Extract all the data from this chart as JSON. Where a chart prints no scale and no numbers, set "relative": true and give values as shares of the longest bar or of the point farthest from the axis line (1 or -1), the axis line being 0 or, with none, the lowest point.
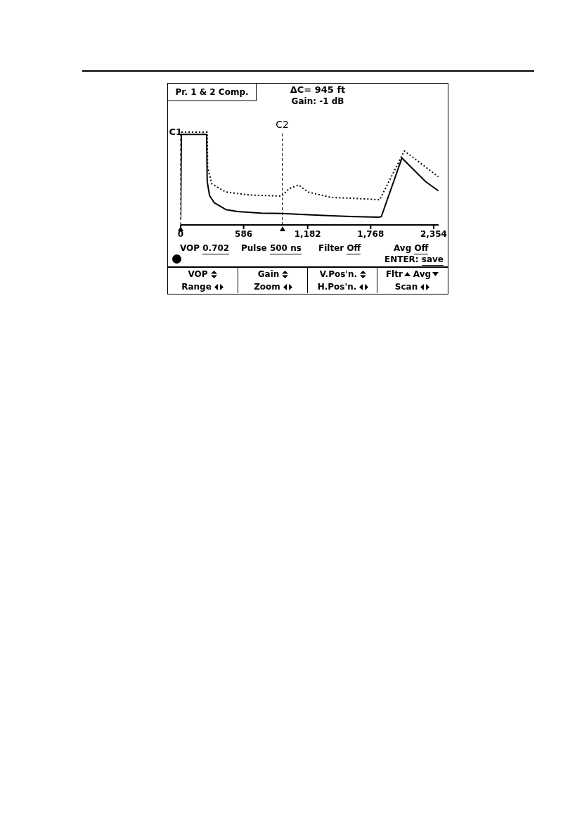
{
  "chart_data": {
    "type": "line",
    "title": "Pr. 1 & 2 Comp.",
    "relative": true,
    "xlim": [
      0,
      2400
    ],
    "xticks": [
      0,
      586,
      {
        "value": 1182,
        "label": "1,182"
      },
      {
        "value": 1768,
        "label": "1,768"
      },
      {
        "value": 2354,
        "label": "2,354"
      }
    ],
    "series": [
      {
        "color": "#000000",
        "line_style": "solid",
        "x": [
          0,
          6.5,
          242,
          247,
          269,
          312,
          421,
          531,
          749,
          946,
          1186,
          1404,
          1622,
          1841,
          1867,
          2059,
          2168,
          2278,
          2398
        ],
        "values": [
          0.063,
          0.975,
          0.975,
          0.468,
          0.316,
          0.24,
          0.165,
          0.144,
          0.127,
          0.124,
          0.109,
          0.099,
          0.089,
          0.084,
          0.089,
          0.722,
          0.595,
          0.468,
          0.367
        ]
      },
      {
        "color": "#000000",
        "line_style": "dotted",
        "x": [
          6.5,
          247,
          251,
          290,
          421,
          640,
          939,
          1011,
          1098,
          1186,
          1404,
          1622,
          1852,
          2081,
          2168,
          2398
        ],
        "values": [
          1.0,
          1.0,
          0.62,
          0.443,
          0.354,
          0.322,
          0.311,
          0.392,
          0.43,
          0.354,
          0.296,
          0.286,
          0.271,
          0.797,
          0.722,
          0.519
        ]
      }
    ],
    "ref_lines": [
      {
        "axis": "x",
        "value": 0,
        "label": "C1",
        "line_style": "dashed",
        "color": "#000000"
      },
      {
        "axis": "x",
        "value": 945,
        "label": "C2",
        "line_style": "dashed",
        "color": "#000000"
      }
    ],
    "annotations": [
      "ΔC= 945 ft",
      "Gain: -1 dB",
      "VOP 0.702",
      "Pulse 500 ns",
      "Filter Off",
      "Avg Off",
      "ENTER: save",
      "VOP",
      "Range",
      "Gain",
      "Zoom",
      "V.Pos'n.",
      "H.Pos'n.",
      "Fltr",
      "Avg",
      "Scan"
    ]
  }
}
